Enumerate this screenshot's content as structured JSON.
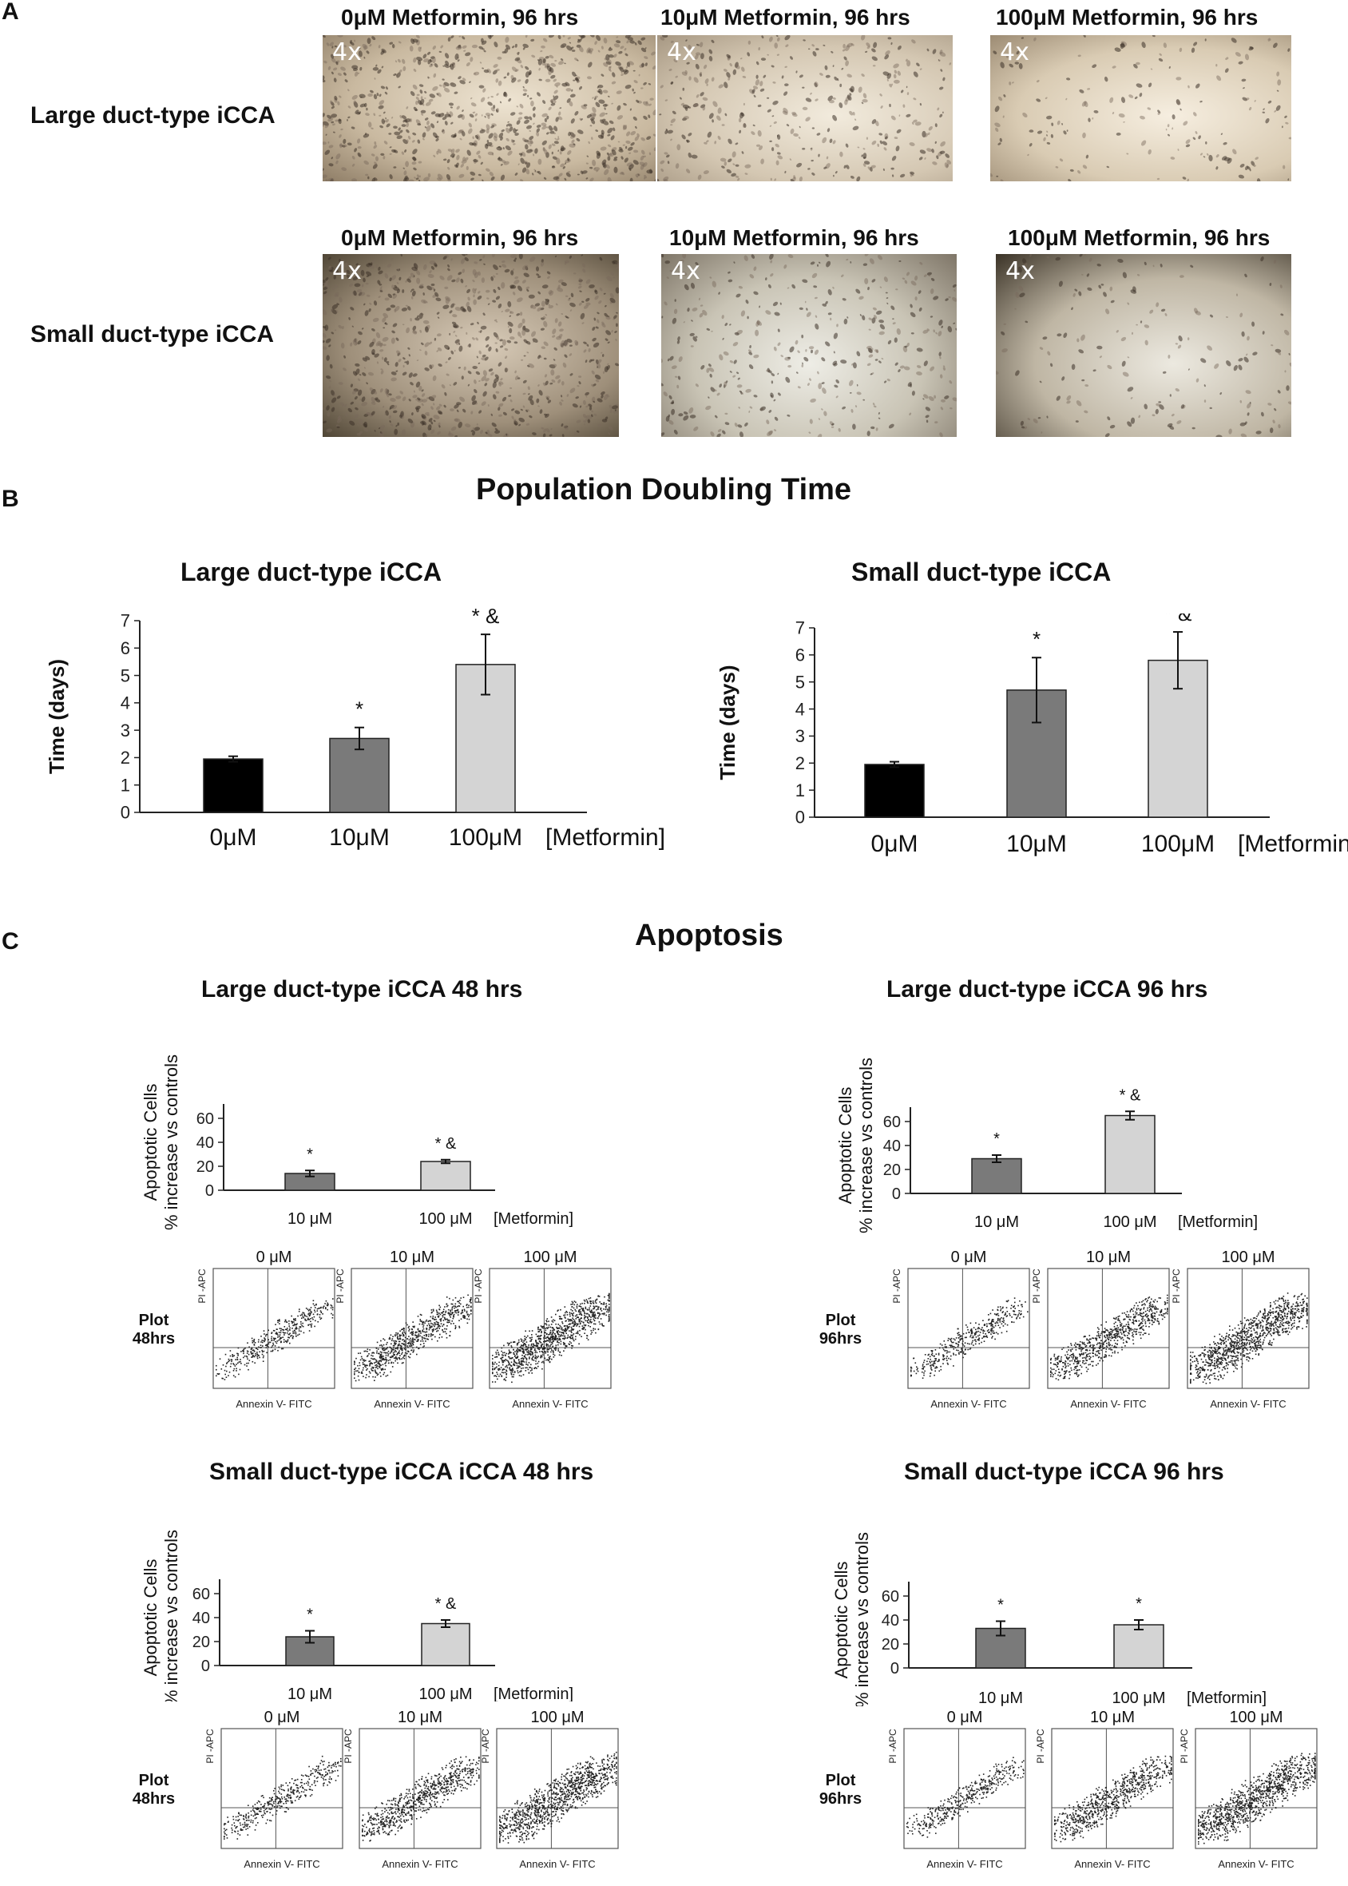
{
  "panel_a": {
    "letter": "A",
    "rows": [
      {
        "label": "Large duct-type iCCA",
        "images": [
          {
            "caption": "0μM Metformin, 96 hrs",
            "magnification": "4x",
            "density": "high"
          },
          {
            "caption": "10μM Metformin, 96 hrs",
            "magnification": "4x",
            "density": "medium"
          },
          {
            "caption": "100μM Metformin, 96 hrs",
            "magnification": "4x",
            "density": "low"
          }
        ]
      },
      {
        "label": "Small duct-type iCCA",
        "images": [
          {
            "caption": "0μM Metformin, 96 hrs",
            "magnification": "4x",
            "density": "high"
          },
          {
            "caption": "10μM Metformin, 96 hrs",
            "magnification": "4x",
            "density": "medium"
          },
          {
            "caption": "100μM Metformin, 96 hrs",
            "magnification": "4x",
            "density": "low"
          }
        ]
      }
    ]
  },
  "panel_b": {
    "letter": "B",
    "title_part1": "Population",
    "title_part2": "Doubling Time"
  },
  "panel_c": {
    "letter": "C",
    "title": "Apoptosis"
  },
  "chart_data": [
    {
      "type": "bar",
      "title": "Large duct-type iCCA",
      "ylabel": "Time (days)",
      "categories": [
        "0μM",
        "10μM",
        "100μM"
      ],
      "category_label": "[Metformin]",
      "values": [
        1.95,
        2.7,
        5.4
      ],
      "errors": [
        0.1,
        0.4,
        1.1
      ],
      "colors": [
        "#000000",
        "#7a7a7a",
        "#d4d4d4"
      ],
      "annotations": [
        "",
        "*",
        "* &"
      ],
      "ylim": [
        0,
        7
      ],
      "yticks": [
        0,
        1,
        2,
        3,
        4,
        5,
        6,
        7
      ]
    },
    {
      "type": "bar",
      "title": "Small duct-type iCCA",
      "ylabel": "Time (days)",
      "categories": [
        "0μM",
        "10μM",
        "100μM"
      ],
      "category_label": "[Metformin]",
      "values": [
        1.95,
        4.7,
        5.8
      ],
      "errors": [
        0.1,
        1.2,
        1.05
      ],
      "colors": [
        "#000000",
        "#7a7a7a",
        "#d4d4d4"
      ],
      "annotations": [
        "",
        "*",
        "* &"
      ],
      "ylim": [
        0,
        7
      ],
      "yticks": [
        0,
        1,
        2,
        3,
        4,
        5,
        6,
        7
      ]
    },
    {
      "type": "bar",
      "title": "Large duct-type iCCA 48 hrs",
      "ylabel_line1": "Apoptotic Cells",
      "ylabel_line2": "% increase vs controls",
      "categories": [
        "10 μM",
        "100 μM"
      ],
      "category_label": "[Metformin]",
      "values": [
        14,
        24
      ],
      "errors": [
        2.5,
        1.5
      ],
      "colors": [
        "#7a7a7a",
        "#d4d4d4"
      ],
      "annotations": [
        "*",
        "* &"
      ],
      "ylim": [
        0,
        60
      ],
      "yticks": [
        0,
        20,
        40,
        60
      ]
    },
    {
      "type": "bar",
      "title": "Large duct-type iCCA 96 hrs",
      "ylabel_line1": "Apoptotic Cells",
      "ylabel_line2": "% increase vs controls",
      "categories": [
        "10 μM",
        "100 μM"
      ],
      "category_label": "[Metformin]",
      "values": [
        29,
        65
      ],
      "errors": [
        3,
        3.5
      ],
      "colors": [
        "#7a7a7a",
        "#d4d4d4"
      ],
      "annotations": [
        "*",
        "* &"
      ],
      "ylim": [
        0,
        60
      ],
      "yticks": [
        0,
        20,
        40,
        60
      ]
    },
    {
      "type": "bar",
      "title": "Small duct-type iCCA iCCA 48 hrs",
      "ylabel_line1": "Apoptotic Cells",
      "ylabel_line2": "% increase vs controls",
      "categories": [
        "10 μM",
        "100 μM"
      ],
      "category_label": "[Metformin]",
      "values": [
        24,
        35
      ],
      "errors": [
        5,
        3
      ],
      "colors": [
        "#7a7a7a",
        "#d4d4d4"
      ],
      "annotations": [
        "*",
        "* &"
      ],
      "ylim": [
        0,
        60
      ],
      "yticks": [
        0,
        20,
        40,
        60
      ]
    },
    {
      "type": "bar",
      "title": "Small duct-type iCCA 96 hrs",
      "ylabel_line1": "Apoptotic Cells",
      "ylabel_line2": "% increase vs controls",
      "categories": [
        "10 μM",
        "100 μM"
      ],
      "category_label": "[Metformin]",
      "values": [
        33,
        36
      ],
      "errors": [
        6,
        4
      ],
      "colors": [
        "#7a7a7a",
        "#d4d4d4"
      ],
      "annotations": [
        "*",
        "*"
      ],
      "ylim": [
        0,
        60
      ],
      "yticks": [
        0,
        20,
        40,
        60
      ]
    }
  ],
  "flow_plots": [
    {
      "label_line1": "Plot",
      "label_line2": "48hrs",
      "concentrations": [
        "0 μM",
        "10 μM",
        "100 μM"
      ],
      "xaxis": "Annexin V- FITC",
      "yaxis": "PI -APC"
    },
    {
      "label_line1": "Plot",
      "label_line2": "96hrs",
      "concentrations": [
        "0 μM",
        "10 μM",
        "100 μM"
      ],
      "xaxis": "Annexin V- FITC",
      "yaxis": "PI -APC"
    },
    {
      "label_line1": "Plot",
      "label_line2": "48hrs",
      "concentrations": [
        "0 μM",
        "10 μM",
        "100 μM"
      ],
      "xaxis": "Annexin V- FITC",
      "yaxis": "PI -APC"
    },
    {
      "label_line1": "Plot",
      "label_line2": "96hrs",
      "concentrations": [
        "0 μM",
        "10 μM",
        "100 μM"
      ],
      "xaxis": "Annexin V- FITC",
      "yaxis": "PI -APC"
    }
  ]
}
